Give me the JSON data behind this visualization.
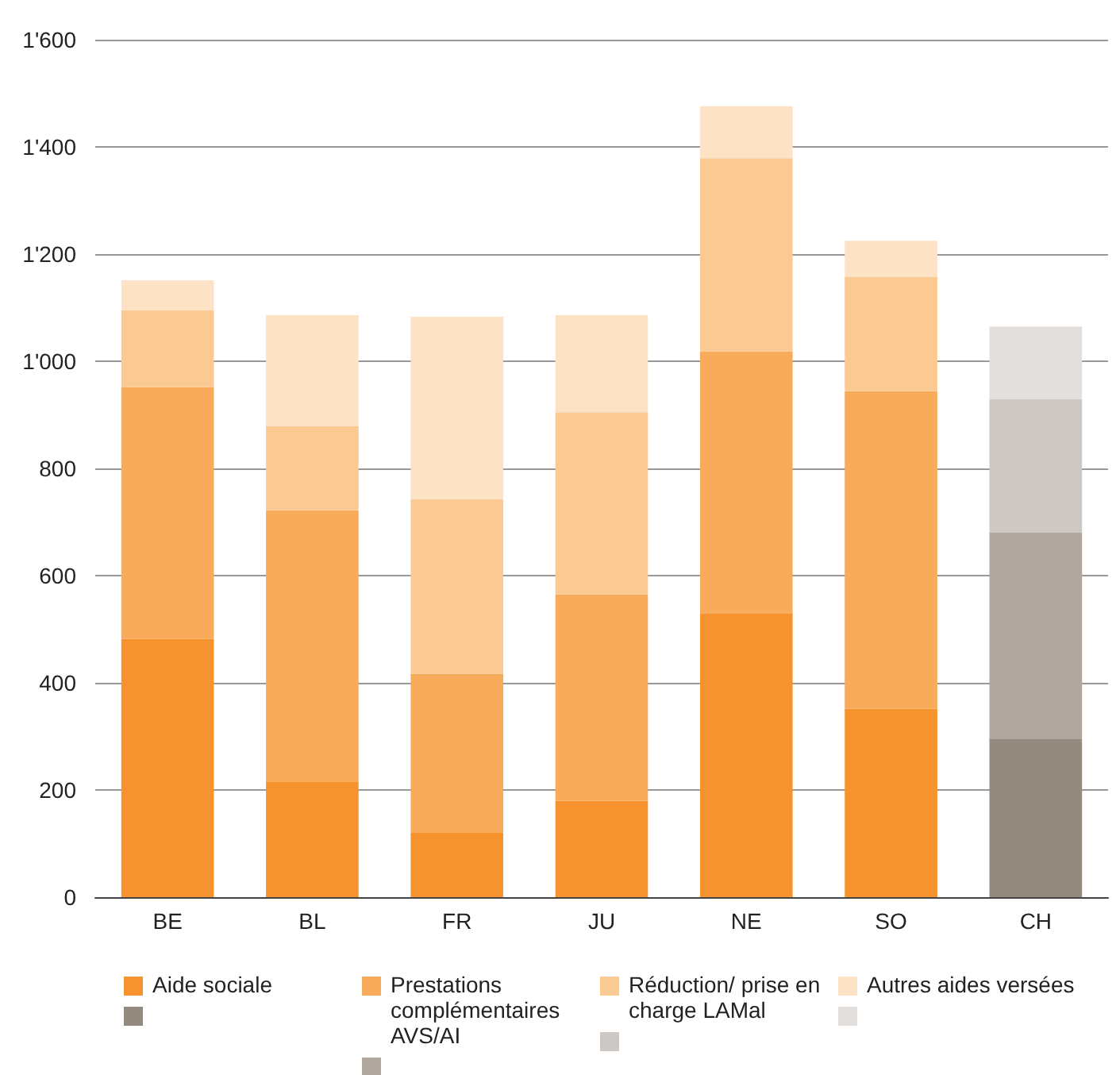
{
  "chart_data": {
    "type": "bar",
    "stacked": true,
    "categories": [
      "BE",
      "BL",
      "FR",
      "JU",
      "NE",
      "SO",
      "CH"
    ],
    "series": [
      {
        "name": "Aide sociale",
        "color": "#f6932e",
        "colors": [
          "#f6932e",
          "#f6932e",
          "#f6932e",
          "#f6932e",
          "#f6932e",
          "#f6932e",
          "#958a80"
        ],
        "values": [
          482,
          216,
          121,
          180,
          530,
          352,
          296
        ]
      },
      {
        "name": "Prestations complémentaires AVS/AI",
        "color": "#f8ab5b",
        "colors": [
          "#f8ab5b",
          "#f8ab5b",
          "#f8ab5b",
          "#f8ab5b",
          "#f8ab5b",
          "#f8ab5b",
          "#b0a79f"
        ],
        "values": [
          470,
          506,
          296,
          385,
          488,
          592,
          384
        ]
      },
      {
        "name": "Réduction/ prise en charge LAMal",
        "color": "#fbc992",
        "colors": [
          "#fbc992",
          "#fbc992",
          "#fbc992",
          "#fbc992",
          "#fbc992",
          "#fbc992",
          "#cdc8c4"
        ],
        "values": [
          143,
          157,
          326,
          340,
          361,
          213,
          249
        ]
      },
      {
        "name": "Autres aides versées",
        "color": "#fde2c6",
        "colors": [
          "#fde2c6",
          "#fde2c6",
          "#fde2c6",
          "#fde2c6",
          "#fde2c6",
          "#fde2c6",
          "#e2dfdd"
        ],
        "values": [
          56,
          207,
          340,
          181,
          97,
          68,
          136
        ]
      }
    ],
    "ylim": [
      0,
      1600
    ],
    "yticks": [
      0,
      200,
      400,
      600,
      800,
      {
        "value": 1000,
        "label": "1'000"
      },
      {
        "value": 1200,
        "label": "1'200"
      },
      {
        "value": 1400,
        "label": "1'400"
      },
      {
        "value": 1600,
        "label": "1'600"
      }
    ],
    "grid": "y",
    "legend": "bottom"
  }
}
